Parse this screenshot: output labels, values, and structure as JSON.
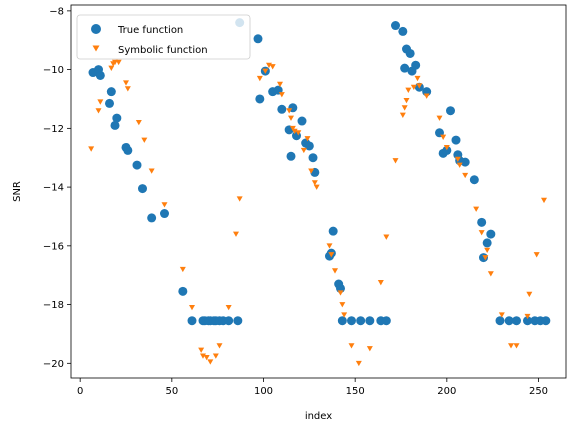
{
  "chart_data": {
    "type": "scatter",
    "xlabel": "index",
    "ylabel": "SNR",
    "xlim": [
      -5,
      265
    ],
    "ylim": [
      -20.5,
      -7.8
    ],
    "xticks": [
      0,
      50,
      100,
      150,
      200,
      250
    ],
    "yticks": [
      -20,
      -18,
      -16,
      -14,
      -12,
      -10,
      -8
    ],
    "legend_position": "upper-left",
    "colors": {
      "true": "#1f77b4",
      "symbolic": "#ff7f0e"
    },
    "series": [
      {
        "name": "True function",
        "marker": "circle",
        "points": [
          [
            7,
            -10.1
          ],
          [
            10,
            -10.0
          ],
          [
            11,
            -10.2
          ],
          [
            16,
            -11.15
          ],
          [
            17,
            -10.75
          ],
          [
            19,
            -11.9
          ],
          [
            20,
            -11.65
          ],
          [
            25,
            -12.65
          ],
          [
            26,
            -12.75
          ],
          [
            31,
            -13.25
          ],
          [
            34,
            -14.05
          ],
          [
            39,
            -15.05
          ],
          [
            46,
            -14.9
          ],
          [
            56,
            -17.55
          ],
          [
            61,
            -18.55
          ],
          [
            67,
            -18.55
          ],
          [
            68,
            -18.55
          ],
          [
            70,
            -18.55
          ],
          [
            71,
            -18.55
          ],
          [
            73,
            -18.55
          ],
          [
            74,
            -18.55
          ],
          [
            76,
            -18.55
          ],
          [
            78,
            -18.55
          ],
          [
            81,
            -18.55
          ],
          [
            86,
            -18.55
          ],
          [
            87,
            -8.4
          ],
          [
            97,
            -8.95
          ],
          [
            98,
            -11.0
          ],
          [
            101,
            -10.05
          ],
          [
            105,
            -10.75
          ],
          [
            108,
            -10.7
          ],
          [
            110,
            -11.35
          ],
          [
            114,
            -12.05
          ],
          [
            115,
            -12.95
          ],
          [
            116,
            -11.3
          ],
          [
            118,
            -12.25
          ],
          [
            121,
            -11.75
          ],
          [
            123,
            -12.5
          ],
          [
            125,
            -12.6
          ],
          [
            127,
            -13.0
          ],
          [
            128,
            -13.5
          ],
          [
            136,
            -16.35
          ],
          [
            137,
            -16.25
          ],
          [
            138,
            -15.5
          ],
          [
            141,
            -17.3
          ],
          [
            142,
            -17.45
          ],
          [
            143,
            -18.55
          ],
          [
            148,
            -18.55
          ],
          [
            153,
            -18.55
          ],
          [
            158,
            -18.55
          ],
          [
            164,
            -18.55
          ],
          [
            167,
            -18.55
          ],
          [
            172,
            -8.5
          ],
          [
            176,
            -8.7
          ],
          [
            177,
            -9.95
          ],
          [
            178,
            -9.3
          ],
          [
            180,
            -9.45
          ],
          [
            181,
            -10.05
          ],
          [
            183,
            -9.85
          ],
          [
            185,
            -10.6
          ],
          [
            189,
            -10.75
          ],
          [
            196,
            -12.15
          ],
          [
            198,
            -12.85
          ],
          [
            200,
            -12.75
          ],
          [
            202,
            -11.4
          ],
          [
            205,
            -12.4
          ],
          [
            206,
            -12.9
          ],
          [
            207,
            -13.1
          ],
          [
            210,
            -13.15
          ],
          [
            215,
            -13.75
          ],
          [
            219,
            -15.2
          ],
          [
            220,
            -16.4
          ],
          [
            222,
            -15.9
          ],
          [
            224,
            -15.6
          ],
          [
            229,
            -18.55
          ],
          [
            234,
            -18.55
          ],
          [
            238,
            -18.55
          ],
          [
            244,
            -18.55
          ],
          [
            248,
            -18.55
          ],
          [
            251,
            -18.55
          ],
          [
            254,
            -18.55
          ]
        ]
      },
      {
        "name": "Symbolic function",
        "marker": "triangle-down",
        "points": [
          [
            6,
            -12.7
          ],
          [
            10,
            -11.4
          ],
          [
            11,
            -11.1
          ],
          [
            17,
            -9.95
          ],
          [
            18,
            -9.8
          ],
          [
            19,
            -9.75
          ],
          [
            21,
            -9.75
          ],
          [
            25,
            -10.45
          ],
          [
            26,
            -10.65
          ],
          [
            32,
            -11.8
          ],
          [
            35,
            -12.4
          ],
          [
            39,
            -13.45
          ],
          [
            46,
            -14.6
          ],
          [
            56,
            -16.8
          ],
          [
            61,
            -18.1
          ],
          [
            66,
            -19.55
          ],
          [
            67,
            -19.75
          ],
          [
            69,
            -19.8
          ],
          [
            71,
            -19.95
          ],
          [
            74,
            -19.75
          ],
          [
            76,
            -19.4
          ],
          [
            81,
            -18.1
          ],
          [
            85,
            -15.6
          ],
          [
            87,
            -14.4
          ],
          [
            98,
            -10.3
          ],
          [
            101,
            -10.05
          ],
          [
            103,
            -9.85
          ],
          [
            105,
            -9.9
          ],
          [
            109,
            -10.5
          ],
          [
            110,
            -10.85
          ],
          [
            114,
            -11.4
          ],
          [
            115,
            -11.65
          ],
          [
            116,
            -12.0
          ],
          [
            117,
            -12.1
          ],
          [
            119,
            -12.15
          ],
          [
            122,
            -12.75
          ],
          [
            124,
            -12.35
          ],
          [
            126,
            -13.45
          ],
          [
            128,
            -13.85
          ],
          [
            129,
            -14.0
          ],
          [
            136,
            -16.0
          ],
          [
            137,
            -16.3
          ],
          [
            139,
            -16.85
          ],
          [
            142,
            -17.6
          ],
          [
            143,
            -18.0
          ],
          [
            144,
            -18.35
          ],
          [
            148,
            -19.4
          ],
          [
            152,
            -20.0
          ],
          [
            158,
            -19.5
          ],
          [
            164,
            -17.25
          ],
          [
            167,
            -15.7
          ],
          [
            172,
            -13.1
          ],
          [
            176,
            -11.55
          ],
          [
            177,
            -11.3
          ],
          [
            178,
            -11.05
          ],
          [
            179,
            -10.7
          ],
          [
            182,
            -10.6
          ],
          [
            184,
            -10.3
          ],
          [
            185,
            -10.55
          ],
          [
            189,
            -10.9
          ],
          [
            196,
            -11.65
          ],
          [
            198,
            -12.3
          ],
          [
            200,
            -12.65
          ],
          [
            206,
            -13.05
          ],
          [
            207,
            -13.25
          ],
          [
            210,
            -13.6
          ],
          [
            216,
            -14.75
          ],
          [
            219,
            -15.55
          ],
          [
            221,
            -16.4
          ],
          [
            222,
            -16.15
          ],
          [
            224,
            -16.95
          ],
          [
            230,
            -18.35
          ],
          [
            235,
            -19.4
          ],
          [
            238,
            -19.4
          ],
          [
            244,
            -18.4
          ],
          [
            245,
            -17.65
          ],
          [
            249,
            -16.3
          ],
          [
            253,
            -14.45
          ]
        ]
      }
    ]
  }
}
